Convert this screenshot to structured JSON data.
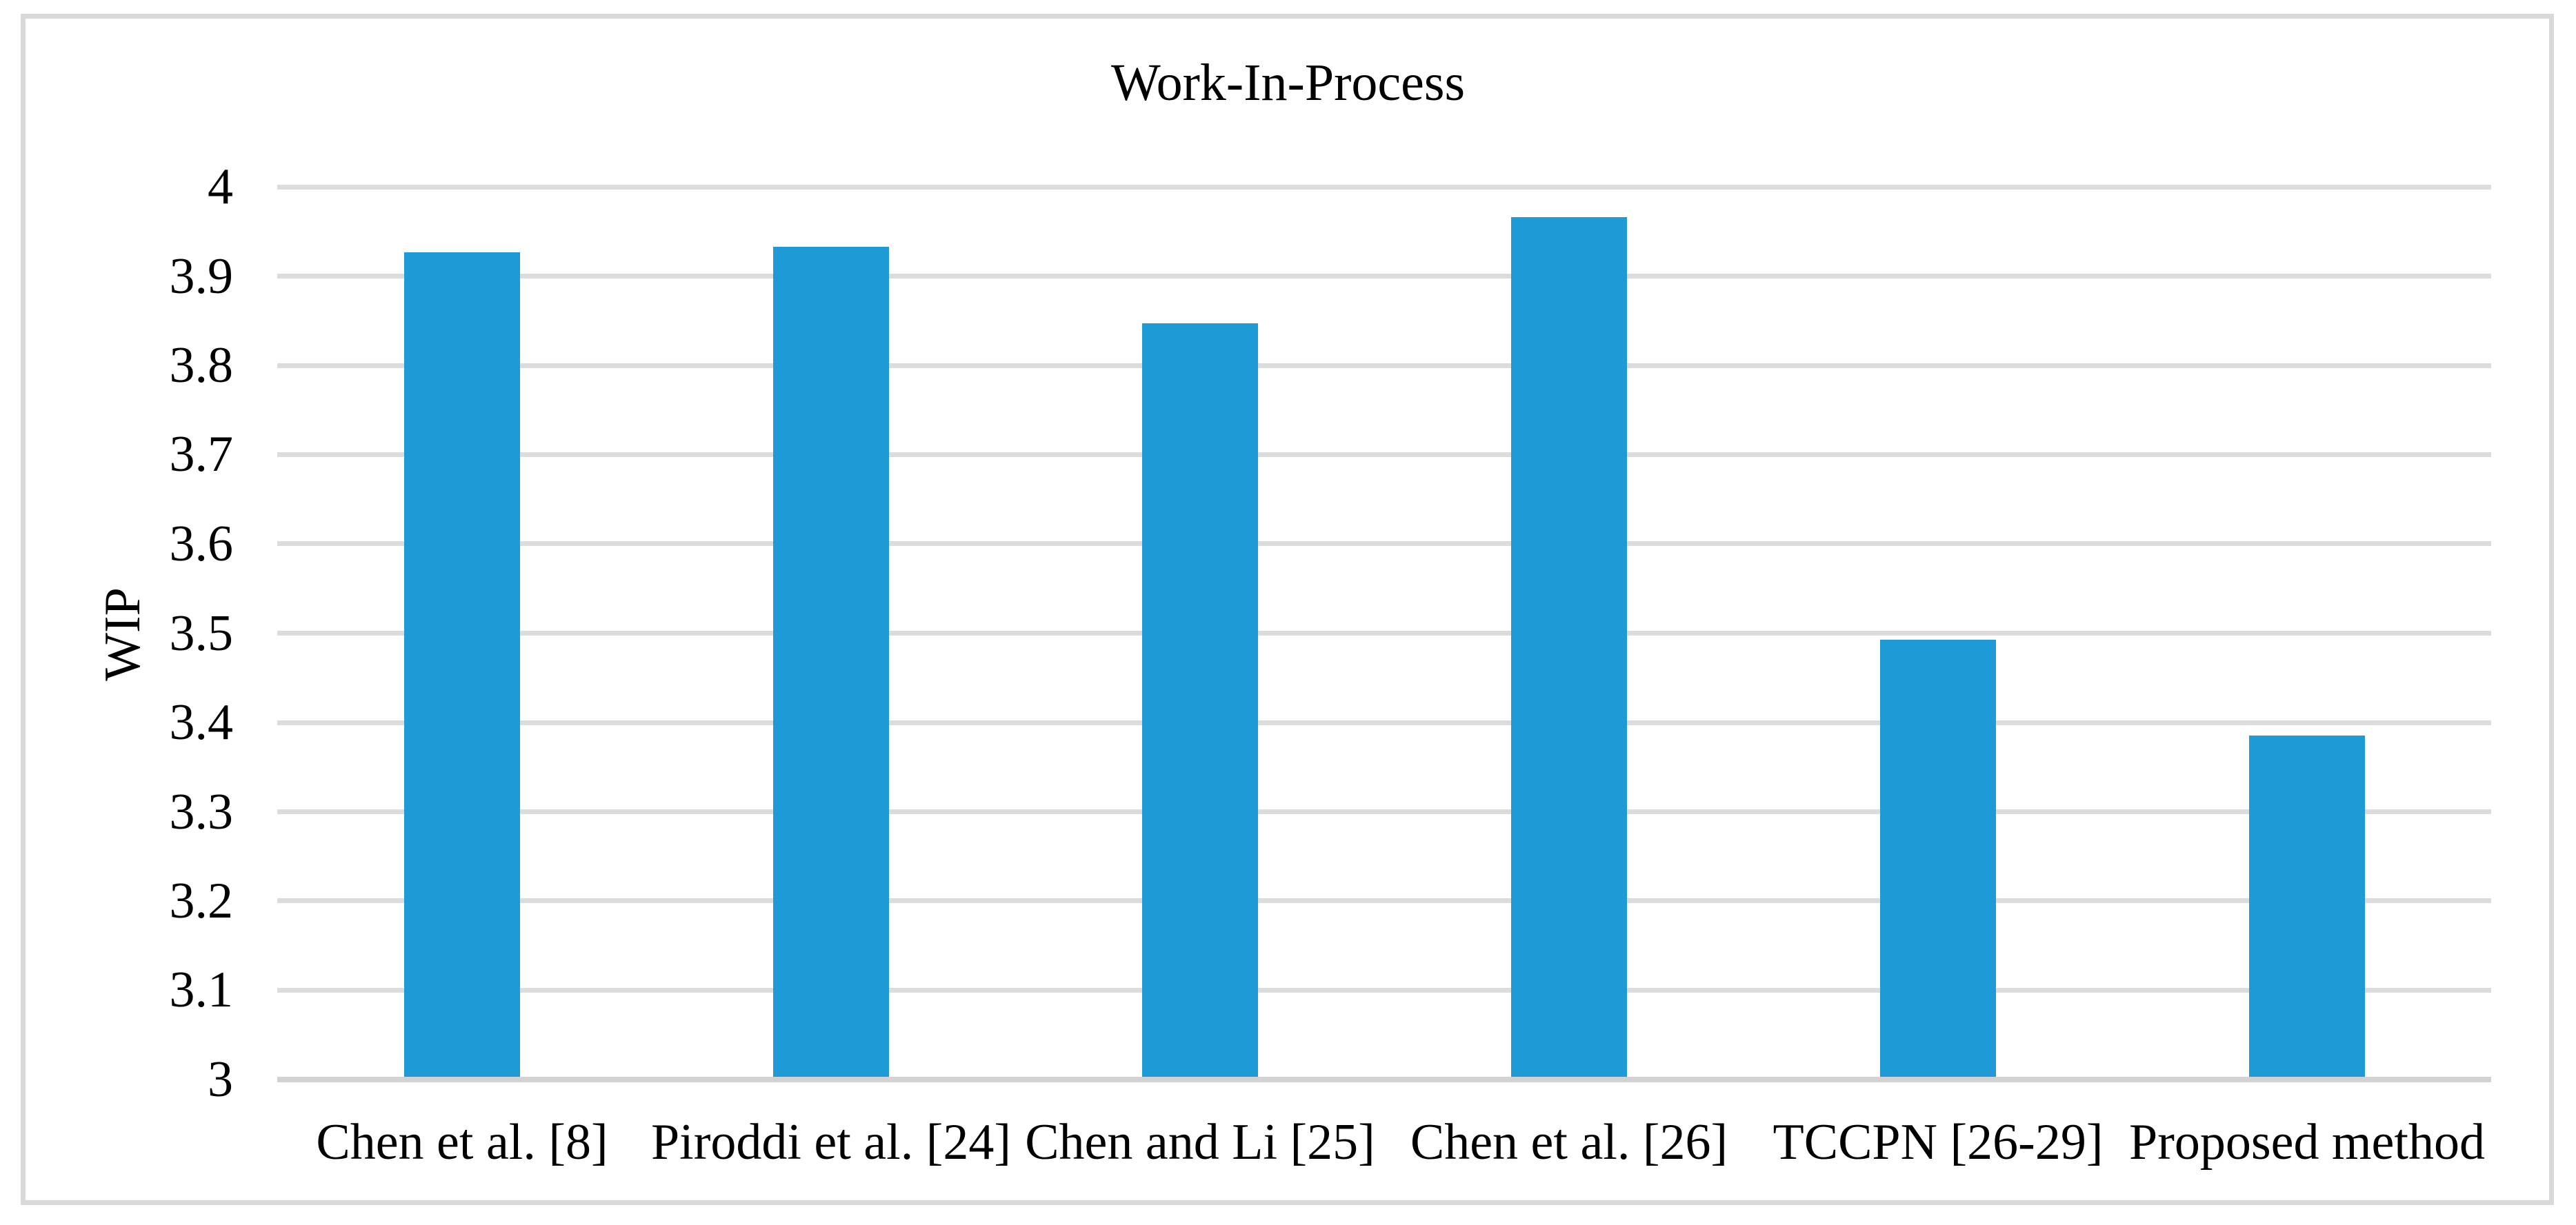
{
  "chart_data": {
    "type": "bar",
    "title": "Work-In-Process",
    "ylabel": "WIP",
    "xlabel": "",
    "categories": [
      "Chen et al. [8]",
      "Piroddi et al. [24]",
      "Chen and Li [25]",
      "Chen et al. [26]",
      "TCCPN [26-29]",
      "Proposed method"
    ],
    "values": [
      3.927,
      3.933,
      3.847,
      3.966,
      3.493,
      3.385
    ],
    "ylim": [
      3,
      4
    ],
    "y_tick_step": 0.1,
    "y_tick_labels": [
      "3",
      "3.1",
      "3.2",
      "3.3",
      "3.4",
      "3.5",
      "3.6",
      "3.7",
      "3.8",
      "3.9",
      "4"
    ],
    "grid": true,
    "legend": false,
    "colors": {
      "bar": "#1E9AD6",
      "gridline": "#DCDCDC",
      "axis_line": "#D2D2D2",
      "frame_border": "#D9D9D9",
      "text": "#000000",
      "background": "#FFFFFF"
    }
  }
}
